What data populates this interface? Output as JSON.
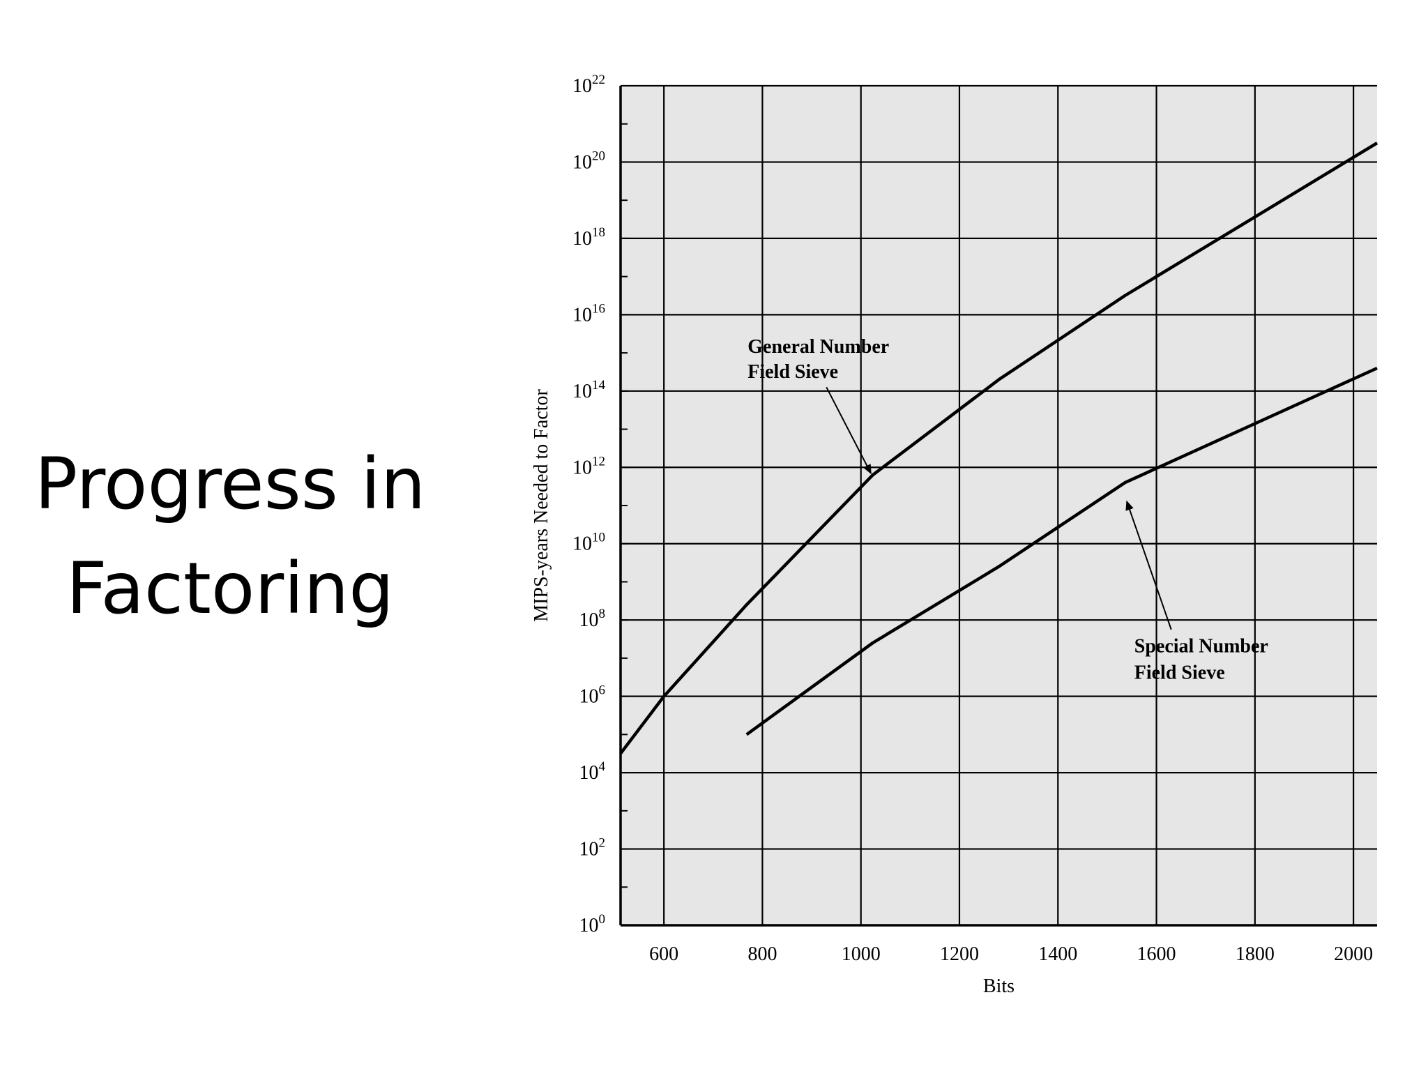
{
  "slide": {
    "title_line1": "Progress in",
    "title_line2": "Factoring"
  },
  "chart_data": {
    "type": "line",
    "xlabel": "Bits",
    "ylabel": "MIPS-years Needed to Factor",
    "xlim": [
      512,
      2048
    ],
    "ylim_log10": [
      0,
      22
    ],
    "y_scale": "log",
    "grid": true,
    "x_ticks": [
      600,
      800,
      1000,
      1200,
      1400,
      1600,
      1800,
      2000
    ],
    "y_tick_exponents": [
      0,
      2,
      4,
      6,
      8,
      10,
      12,
      14,
      16,
      18,
      20,
      22
    ],
    "y_tick_base": "10",
    "colors": {
      "background": "#e6e6e6",
      "lines": "#000000",
      "grid": "#000000"
    },
    "series": [
      {
        "name": "General Number Field Sieve",
        "points": [
          {
            "x": 512,
            "y_log10": 4.5
          },
          {
            "x": 600,
            "y_log10": 6.0
          },
          {
            "x": 768,
            "y_log10": 8.4
          },
          {
            "x": 1024,
            "y_log10": 11.8
          },
          {
            "x": 1280,
            "y_log10": 14.3
          },
          {
            "x": 1536,
            "y_log10": 16.5
          },
          {
            "x": 2048,
            "y_log10": 20.5
          }
        ]
      },
      {
        "name": "Special Number Field Sieve",
        "points": [
          {
            "x": 768,
            "y_log10": 5.0
          },
          {
            "x": 1024,
            "y_log10": 7.4
          },
          {
            "x": 1280,
            "y_log10": 9.4
          },
          {
            "x": 1536,
            "y_log10": 11.6
          },
          {
            "x": 2048,
            "y_log10": 14.6
          }
        ]
      }
    ],
    "annotations": [
      {
        "series": 0,
        "lines": [
          "General Number",
          "Field Sieve"
        ],
        "arrow_from": {
          "x": 930,
          "y_log10": 14.1
        },
        "arrow_to": {
          "x": 1020,
          "y_log10": 11.85
        }
      },
      {
        "series": 1,
        "lines": [
          "Special Number",
          "Field Sieve"
        ],
        "arrow_from": {
          "x": 1630,
          "y_log10": 7.75
        },
        "arrow_to": {
          "x": 1540,
          "y_log10": 11.1
        }
      }
    ]
  }
}
